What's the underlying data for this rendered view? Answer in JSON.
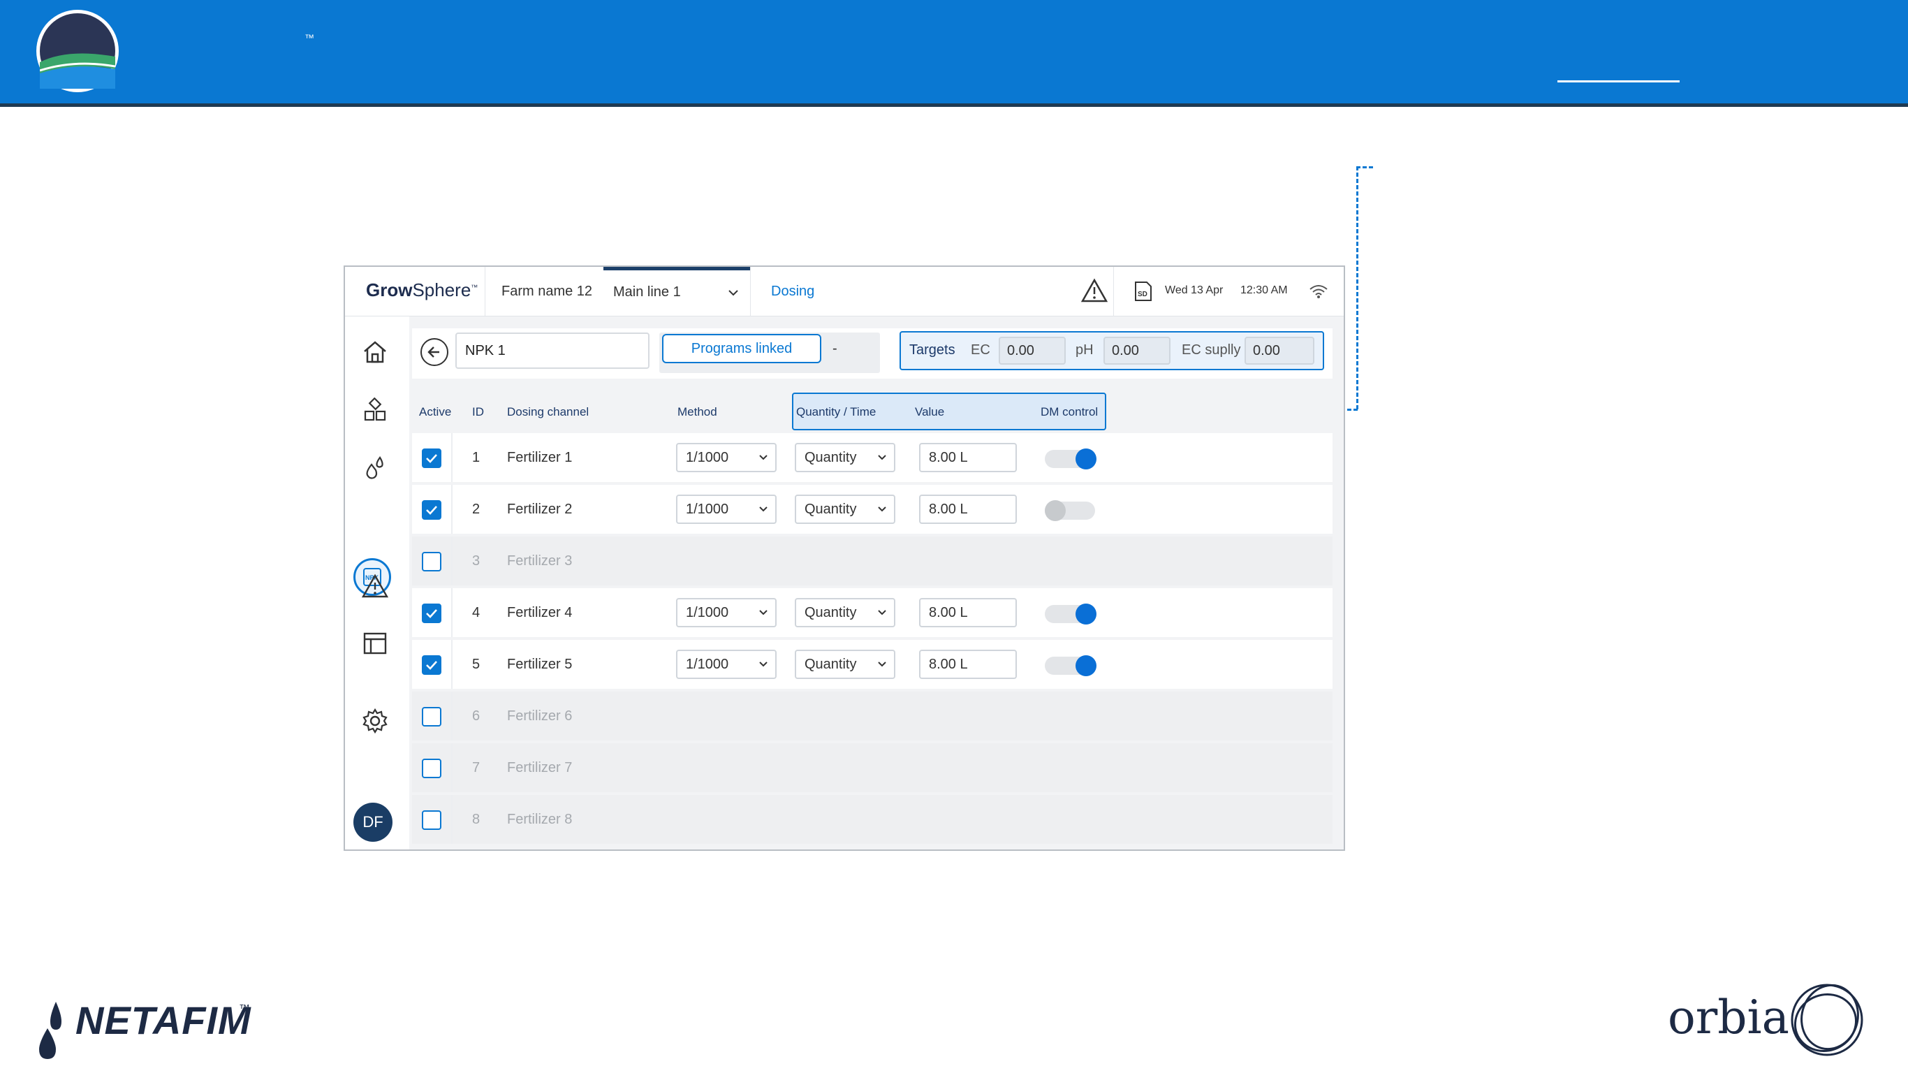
{
  "banner": {
    "tm": "™"
  },
  "app": {
    "brand_bold": "Grow",
    "brand_rest": "Sphere",
    "brand_tm": "™",
    "farm_name": "Farm name 12",
    "main_line": "Main line 1",
    "dosing_tab": "Dosing",
    "date": "Wed 13 Apr",
    "time": "12:30 AM",
    "sd_label": "SD"
  },
  "sidebar": {
    "avatar": "DF",
    "npk_label": "NPK"
  },
  "header": {
    "npk_value": "NPK 1",
    "programs_linked": "Programs linked",
    "programs_dash": "-",
    "targets_label": "Targets",
    "ec_label": "EC",
    "ec_value": "0.00",
    "ph_label": "pH",
    "ph_value": "0.00",
    "ec_supply_label": "EC suplly",
    "ec_supply_value": "0.00"
  },
  "table": {
    "headers": {
      "active": "Active",
      "id": "ID",
      "channel": "Dosing channel",
      "method": "Method",
      "qty_time": "Quantity / Time",
      "value": "Value",
      "dm_control": "DM control"
    },
    "rows": [
      {
        "id": "1",
        "name": "Fertilizer 1",
        "method": "1/1000",
        "qty": "Quantity",
        "value": "8.00 L",
        "active": true,
        "dm": true
      },
      {
        "id": "2",
        "name": "Fertilizer 2",
        "method": "1/1000",
        "qty": "Quantity",
        "value": "8.00 L",
        "active": true,
        "dm": false
      },
      {
        "id": "3",
        "name": "Fertilizer 3",
        "active": false
      },
      {
        "id": "4",
        "name": "Fertilizer 4",
        "method": "1/1000",
        "qty": "Quantity",
        "value": "8.00 L",
        "active": true,
        "dm": true
      },
      {
        "id": "5",
        "name": "Fertilizer 5",
        "method": "1/1000",
        "qty": "Quantity",
        "value": "8.00 L",
        "active": true,
        "dm": true
      },
      {
        "id": "6",
        "name": "Fertilizer 6",
        "active": false
      },
      {
        "id": "7",
        "name": "Fertilizer 7",
        "active": false
      },
      {
        "id": "8",
        "name": "Fertilizer 8",
        "active": false
      }
    ]
  },
  "footer": {
    "netafim": "NETAFIM",
    "netafim_tm": "™",
    "orbia": "orbia"
  },
  "colors": {
    "accent": "#0a78d2",
    "banner": "#0a78d2",
    "navy": "#1a3d65"
  }
}
